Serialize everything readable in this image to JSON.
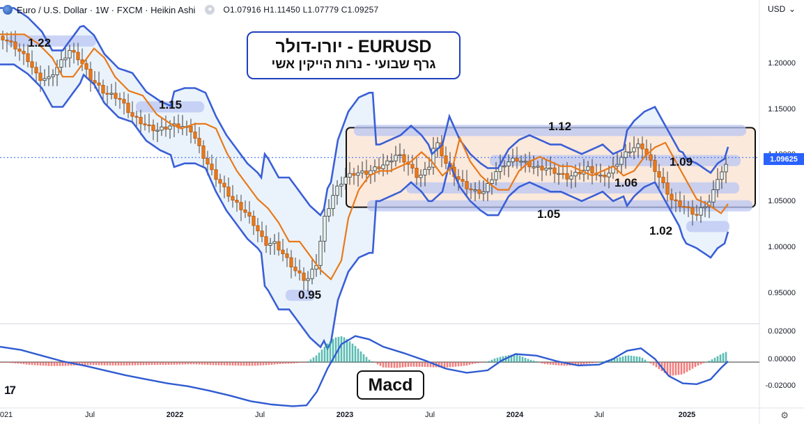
{
  "header": {
    "instrument": "Euro / U.S. Dollar · 1W · FXCM · Heikin Ashi",
    "ohlc": "O1.07916  H1.11450  L1.07779  C1.09257",
    "currency": "USD"
  },
  "annotations": {
    "title_line1": "EURUSD - יורו-דולר",
    "title_line2": "גרף שבועי - נרות הייקין אשי",
    "macd_label": "Macd"
  },
  "levels": [
    "1.22",
    "1.15",
    "1.12",
    "1.09",
    "1.06",
    "1.05",
    "1.02",
    "0.95"
  ],
  "price_axis": [
    "1.20000",
    "1.15000",
    "1.10000",
    "1.05000",
    "1.00000",
    "0.95000"
  ],
  "macd_axis": [
    "0.02000",
    "0.00000",
    "-0.02000"
  ],
  "current_price": "1.09625",
  "time_axis": [
    "021",
    "Jul",
    "2022",
    "Jul",
    "2023",
    "Jul",
    "2024",
    "Jul",
    "2025"
  ],
  "colors": {
    "up": "#26a69a",
    "down": "#ef5350",
    "candle_up_fill": "#e8f5f2",
    "ema": "#e8791a",
    "bollinger": "#3a5fd6",
    "band_fill": "#eaf3fb",
    "zone": "#b9c5f3",
    "range_box": "#fbe9dc",
    "macd_line": "#2f5bd1",
    "accent": "#2962ff"
  },
  "chart_data": {
    "type": "candlestick",
    "title": "Euro / U.S. Dollar · 1W · FXCM · Heikin Ashi",
    "price_range": [
      0.922,
      1.245
    ],
    "macd_range": [
      -0.0277,
      0.0223
    ],
    "x": [
      "2021",
      "Jul",
      "2022",
      "Jul",
      "2023",
      "Jul",
      "2024",
      "Jul",
      "2025"
    ],
    "price_path": [
      [
        0,
        1.225
      ],
      [
        20,
        1.215
      ],
      [
        40,
        1.2
      ],
      [
        55,
        1.18
      ],
      [
        70,
        1.18
      ],
      [
        85,
        1.195
      ],
      [
        100,
        1.21
      ],
      [
        115,
        1.2
      ],
      [
        130,
        1.18
      ],
      [
        150,
        1.165
      ],
      [
        170,
        1.16
      ],
      [
        190,
        1.14
      ],
      [
        210,
        1.13
      ],
      [
        225,
        1.125
      ],
      [
        245,
        1.13
      ],
      [
        260,
        1.13
      ],
      [
        275,
        1.125
      ],
      [
        290,
        1.1
      ],
      [
        305,
        1.08
      ],
      [
        320,
        1.065
      ],
      [
        335,
        1.05
      ],
      [
        350,
        1.04
      ],
      [
        365,
        1.025
      ],
      [
        380,
        1.005
      ],
      [
        395,
        1.005
      ],
      [
        410,
        0.99
      ],
      [
        425,
        0.975
      ],
      [
        440,
        0.965
      ],
      [
        455,
        0.985
      ],
      [
        465,
        1.03
      ],
      [
        480,
        1.06
      ],
      [
        495,
        1.075
      ],
      [
        510,
        1.08
      ],
      [
        525,
        1.08
      ],
      [
        540,
        1.085
      ],
      [
        555,
        1.09
      ],
      [
        570,
        1.1
      ],
      [
        585,
        1.09
      ],
      [
        600,
        1.075
      ],
      [
        615,
        1.085
      ],
      [
        625,
        1.115
      ],
      [
        640,
        1.09
      ],
      [
        655,
        1.075
      ],
      [
        670,
        1.065
      ],
      [
        680,
        1.06
      ],
      [
        695,
        1.06
      ],
      [
        710,
        1.08
      ],
      [
        725,
        1.09
      ],
      [
        740,
        1.095
      ],
      [
        755,
        1.09
      ],
      [
        770,
        1.085
      ],
      [
        785,
        1.085
      ],
      [
        800,
        1.08
      ],
      [
        815,
        1.075
      ],
      [
        830,
        1.08
      ],
      [
        845,
        1.085
      ],
      [
        860,
        1.075
      ],
      [
        875,
        1.08
      ],
      [
        890,
        1.095
      ],
      [
        905,
        1.105
      ],
      [
        920,
        1.11
      ],
      [
        935,
        1.09
      ],
      [
        950,
        1.07
      ],
      [
        965,
        1.05
      ],
      [
        980,
        1.045
      ],
      [
        990,
        1.04
      ],
      [
        1000,
        1.035
      ],
      [
        1010,
        1.045
      ],
      [
        1020,
        1.05
      ],
      [
        1030,
        1.075
      ],
      [
        1045,
        1.09
      ]
    ],
    "levels": [
      1.22,
      1.15,
      1.12,
      1.09,
      1.06,
      1.05,
      1.02,
      0.95
    ],
    "range_box": [
      1.045,
      1.125
    ],
    "macd_path": [
      [
        0,
        0.0095
      ],
      [
        30,
        0.0075
      ],
      [
        60,
        0.004
      ],
      [
        90,
        0.0005
      ],
      [
        120,
        -0.002
      ],
      [
        150,
        -0.005
      ],
      [
        180,
        -0.008
      ],
      [
        210,
        -0.0105
      ],
      [
        240,
        -0.013
      ],
      [
        270,
        -0.0148
      ],
      [
        300,
        -0.0175
      ],
      [
        330,
        -0.0205
      ],
      [
        360,
        -0.024
      ],
      [
        390,
        -0.026
      ],
      [
        420,
        -0.027
      ],
      [
        440,
        -0.0265
      ],
      [
        455,
        -0.018
      ],
      [
        470,
        -0.004
      ],
      [
        490,
        0.011
      ],
      [
        510,
        0.016
      ],
      [
        530,
        0.014
      ],
      [
        550,
        0.0095
      ],
      [
        580,
        0.0055
      ],
      [
        610,
        0.001
      ],
      [
        640,
        -0.004
      ],
      [
        670,
        -0.0065
      ],
      [
        700,
        -0.005
      ],
      [
        720,
        0.001
      ],
      [
        740,
        0.005
      ],
      [
        770,
        0.004
      ],
      [
        800,
        0.0005
      ],
      [
        830,
        -0.002
      ],
      [
        860,
        -0.0015
      ],
      [
        880,
        0.002
      ],
      [
        900,
        0.007
      ],
      [
        920,
        0.0085
      ],
      [
        940,
        0.002
      ],
      [
        960,
        -0.0085
      ],
      [
        980,
        -0.013
      ],
      [
        1000,
        -0.0135
      ],
      [
        1020,
        -0.0105
      ],
      [
        1035,
        -0.0035
      ],
      [
        1045,
        0.0005
      ]
    ]
  }
}
